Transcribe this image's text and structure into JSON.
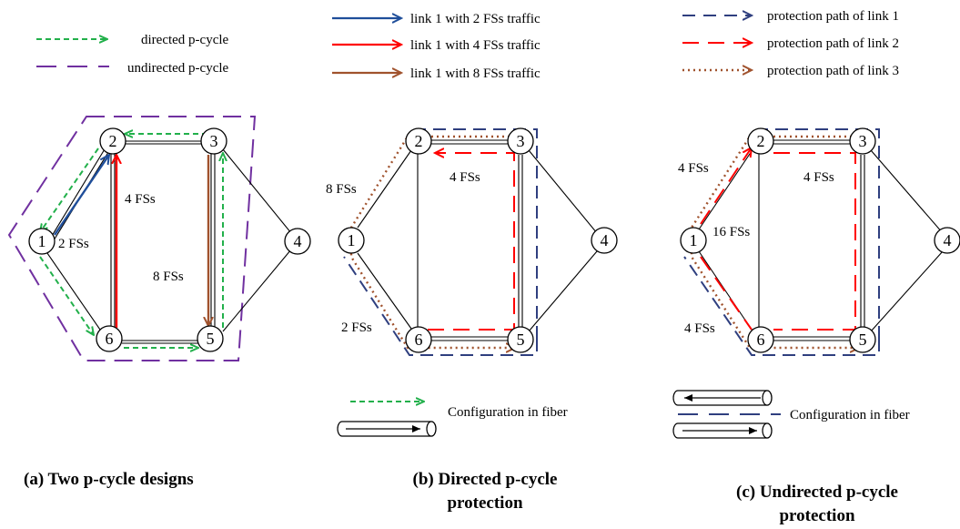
{
  "legend": {
    "directed": "directed p-cycle",
    "undirected": "undirected p-cycle",
    "traffic2": "link 1 with 2 FSs traffic",
    "traffic4": "link 1 with 4 FSs traffic",
    "traffic8": "link 1 with 8 FSs traffic",
    "prot1": "protection path of link 1",
    "prot2": "protection path of link 2",
    "prot3": "protection path of link 3"
  },
  "nodes": [
    "1",
    "2",
    "3",
    "4",
    "5",
    "6"
  ],
  "panel_a": {
    "fs2": "2 FSs",
    "fs4": "4 FSs",
    "fs8": "8 FSs",
    "caption": "(a) Two p-cycle designs"
  },
  "panel_b": {
    "fs8": "8 FSs",
    "fs4": "4 FSs",
    "fs2": "2 FSs",
    "config": "Configuration in fiber",
    "caption_l1": "(b) Directed p-cycle",
    "caption_l2": "protection"
  },
  "panel_c": {
    "fs4a": "4 FSs",
    "fs16": "16 FSs",
    "fs4b": "4 FSs",
    "fs4c": "4 FSs",
    "config": "Configuration in fiber",
    "caption_l1": "(c) Undirected p-cycle",
    "caption_l2": "protection"
  },
  "colors": {
    "green": "#22b04b",
    "purple": "#7030a0",
    "navy": "#2f3f7f",
    "blue": "#1f4e9a",
    "red": "#ff0000",
    "brown": "#a0522d"
  }
}
